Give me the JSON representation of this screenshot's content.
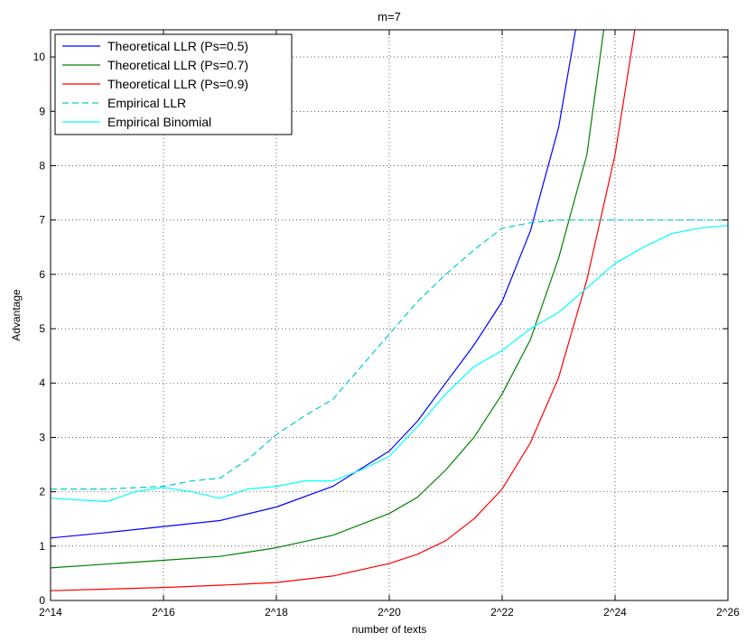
{
  "chart_data": {
    "type": "line",
    "title": "m=7",
    "xlabel": "number of texts",
    "ylabel": "Advantage",
    "x_scale": "log2",
    "xlim": [
      "2^14",
      "2^26"
    ],
    "ylim": [
      0,
      10.5
    ],
    "x_ticks": [
      "2^14",
      "2^16",
      "2^18",
      "2^20",
      "2^22",
      "2^24",
      "2^26"
    ],
    "y_ticks": [
      "0",
      "1",
      "2",
      "3",
      "4",
      "5",
      "6",
      "7",
      "8",
      "9",
      "10"
    ],
    "grid": true,
    "legend_position": "top-left",
    "series": [
      {
        "name": "Theoretical LLR (Ps=0.5)",
        "color": "#0000ff",
        "style": "solid",
        "points": [
          [
            "2^14",
            1.15
          ],
          [
            "2^15",
            1.25
          ],
          [
            "2^16",
            1.36
          ],
          [
            "2^17",
            1.47
          ],
          [
            "2^18",
            1.72
          ],
          [
            "2^19",
            2.1
          ],
          [
            "2^20",
            2.75
          ],
          [
            "2^20.5",
            3.3
          ],
          [
            "2^21",
            4.0
          ],
          [
            "2^21.5",
            4.7
          ],
          [
            "2^22",
            5.5
          ],
          [
            "2^22.5",
            6.8
          ],
          [
            "2^23",
            8.7
          ],
          [
            "2^23.3",
            10.5
          ]
        ]
      },
      {
        "name": "Theoretical LLR (Ps=0.7)",
        "color": "#008000",
        "style": "solid",
        "points": [
          [
            "2^14",
            0.6
          ],
          [
            "2^15",
            0.67
          ],
          [
            "2^16",
            0.74
          ],
          [
            "2^17",
            0.81
          ],
          [
            "2^18",
            0.97
          ],
          [
            "2^19",
            1.2
          ],
          [
            "2^20",
            1.6
          ],
          [
            "2^20.5",
            1.9
          ],
          [
            "2^21",
            2.4
          ],
          [
            "2^21.5",
            3.0
          ],
          [
            "2^22",
            3.8
          ],
          [
            "2^22.5",
            4.8
          ],
          [
            "2^23",
            6.3
          ],
          [
            "2^23.5",
            8.2
          ],
          [
            "2^23.8",
            10.5
          ]
        ]
      },
      {
        "name": "Theoretical LLR (Ps=0.9)",
        "color": "#ff0000",
        "style": "solid",
        "points": [
          [
            "2^14",
            0.18
          ],
          [
            "2^15",
            0.21
          ],
          [
            "2^16",
            0.24
          ],
          [
            "2^17",
            0.28
          ],
          [
            "2^18",
            0.33
          ],
          [
            "2^19",
            0.45
          ],
          [
            "2^20",
            0.68
          ],
          [
            "2^20.5",
            0.85
          ],
          [
            "2^21",
            1.1
          ],
          [
            "2^21.5",
            1.5
          ],
          [
            "2^22",
            2.05
          ],
          [
            "2^22.5",
            2.9
          ],
          [
            "2^23",
            4.1
          ],
          [
            "2^23.5",
            5.9
          ],
          [
            "2^24",
            8.2
          ],
          [
            "2^24.35",
            10.5
          ]
        ]
      },
      {
        "name": "Empirical LLR",
        "color": "#00cccc",
        "style": "dashed",
        "points": [
          [
            "2^14",
            2.05
          ],
          [
            "2^15",
            2.05
          ],
          [
            "2^16",
            2.1
          ],
          [
            "2^16.5",
            2.2
          ],
          [
            "2^17",
            2.25
          ],
          [
            "2^17.5",
            2.6
          ],
          [
            "2^18",
            3.05
          ],
          [
            "2^18.5",
            3.4
          ],
          [
            "2^19",
            3.7
          ],
          [
            "2^19.5",
            4.3
          ],
          [
            "2^20",
            4.9
          ],
          [
            "2^20.5",
            5.5
          ],
          [
            "2^21",
            6.0
          ],
          [
            "2^21.5",
            6.45
          ],
          [
            "2^22",
            6.85
          ],
          [
            "2^22.5",
            6.95
          ],
          [
            "2^23",
            7.0
          ],
          [
            "2^26",
            7.0
          ]
        ]
      },
      {
        "name": "Empirical Binomial",
        "color": "#00ffff",
        "style": "solid",
        "points": [
          [
            "2^14",
            1.88
          ],
          [
            "2^15",
            1.82
          ],
          [
            "2^15.5",
            2.0
          ],
          [
            "2^16",
            2.08
          ],
          [
            "2^16.5",
            2.0
          ],
          [
            "2^17",
            1.88
          ],
          [
            "2^17.5",
            2.05
          ],
          [
            "2^18",
            2.1
          ],
          [
            "2^18.5",
            2.2
          ],
          [
            "2^19",
            2.2
          ],
          [
            "2^19.5",
            2.4
          ],
          [
            "2^20",
            2.65
          ],
          [
            "2^20.5",
            3.2
          ],
          [
            "2^21",
            3.8
          ],
          [
            "2^21.5",
            4.3
          ],
          [
            "2^22",
            4.6
          ],
          [
            "2^22.5",
            5.0
          ],
          [
            "2^23",
            5.3
          ],
          [
            "2^23.5",
            5.75
          ],
          [
            "2^24",
            6.2
          ],
          [
            "2^24.5",
            6.5
          ],
          [
            "2^25",
            6.75
          ],
          [
            "2^25.5",
            6.85
          ],
          [
            "2^26",
            6.9
          ]
        ]
      }
    ]
  }
}
